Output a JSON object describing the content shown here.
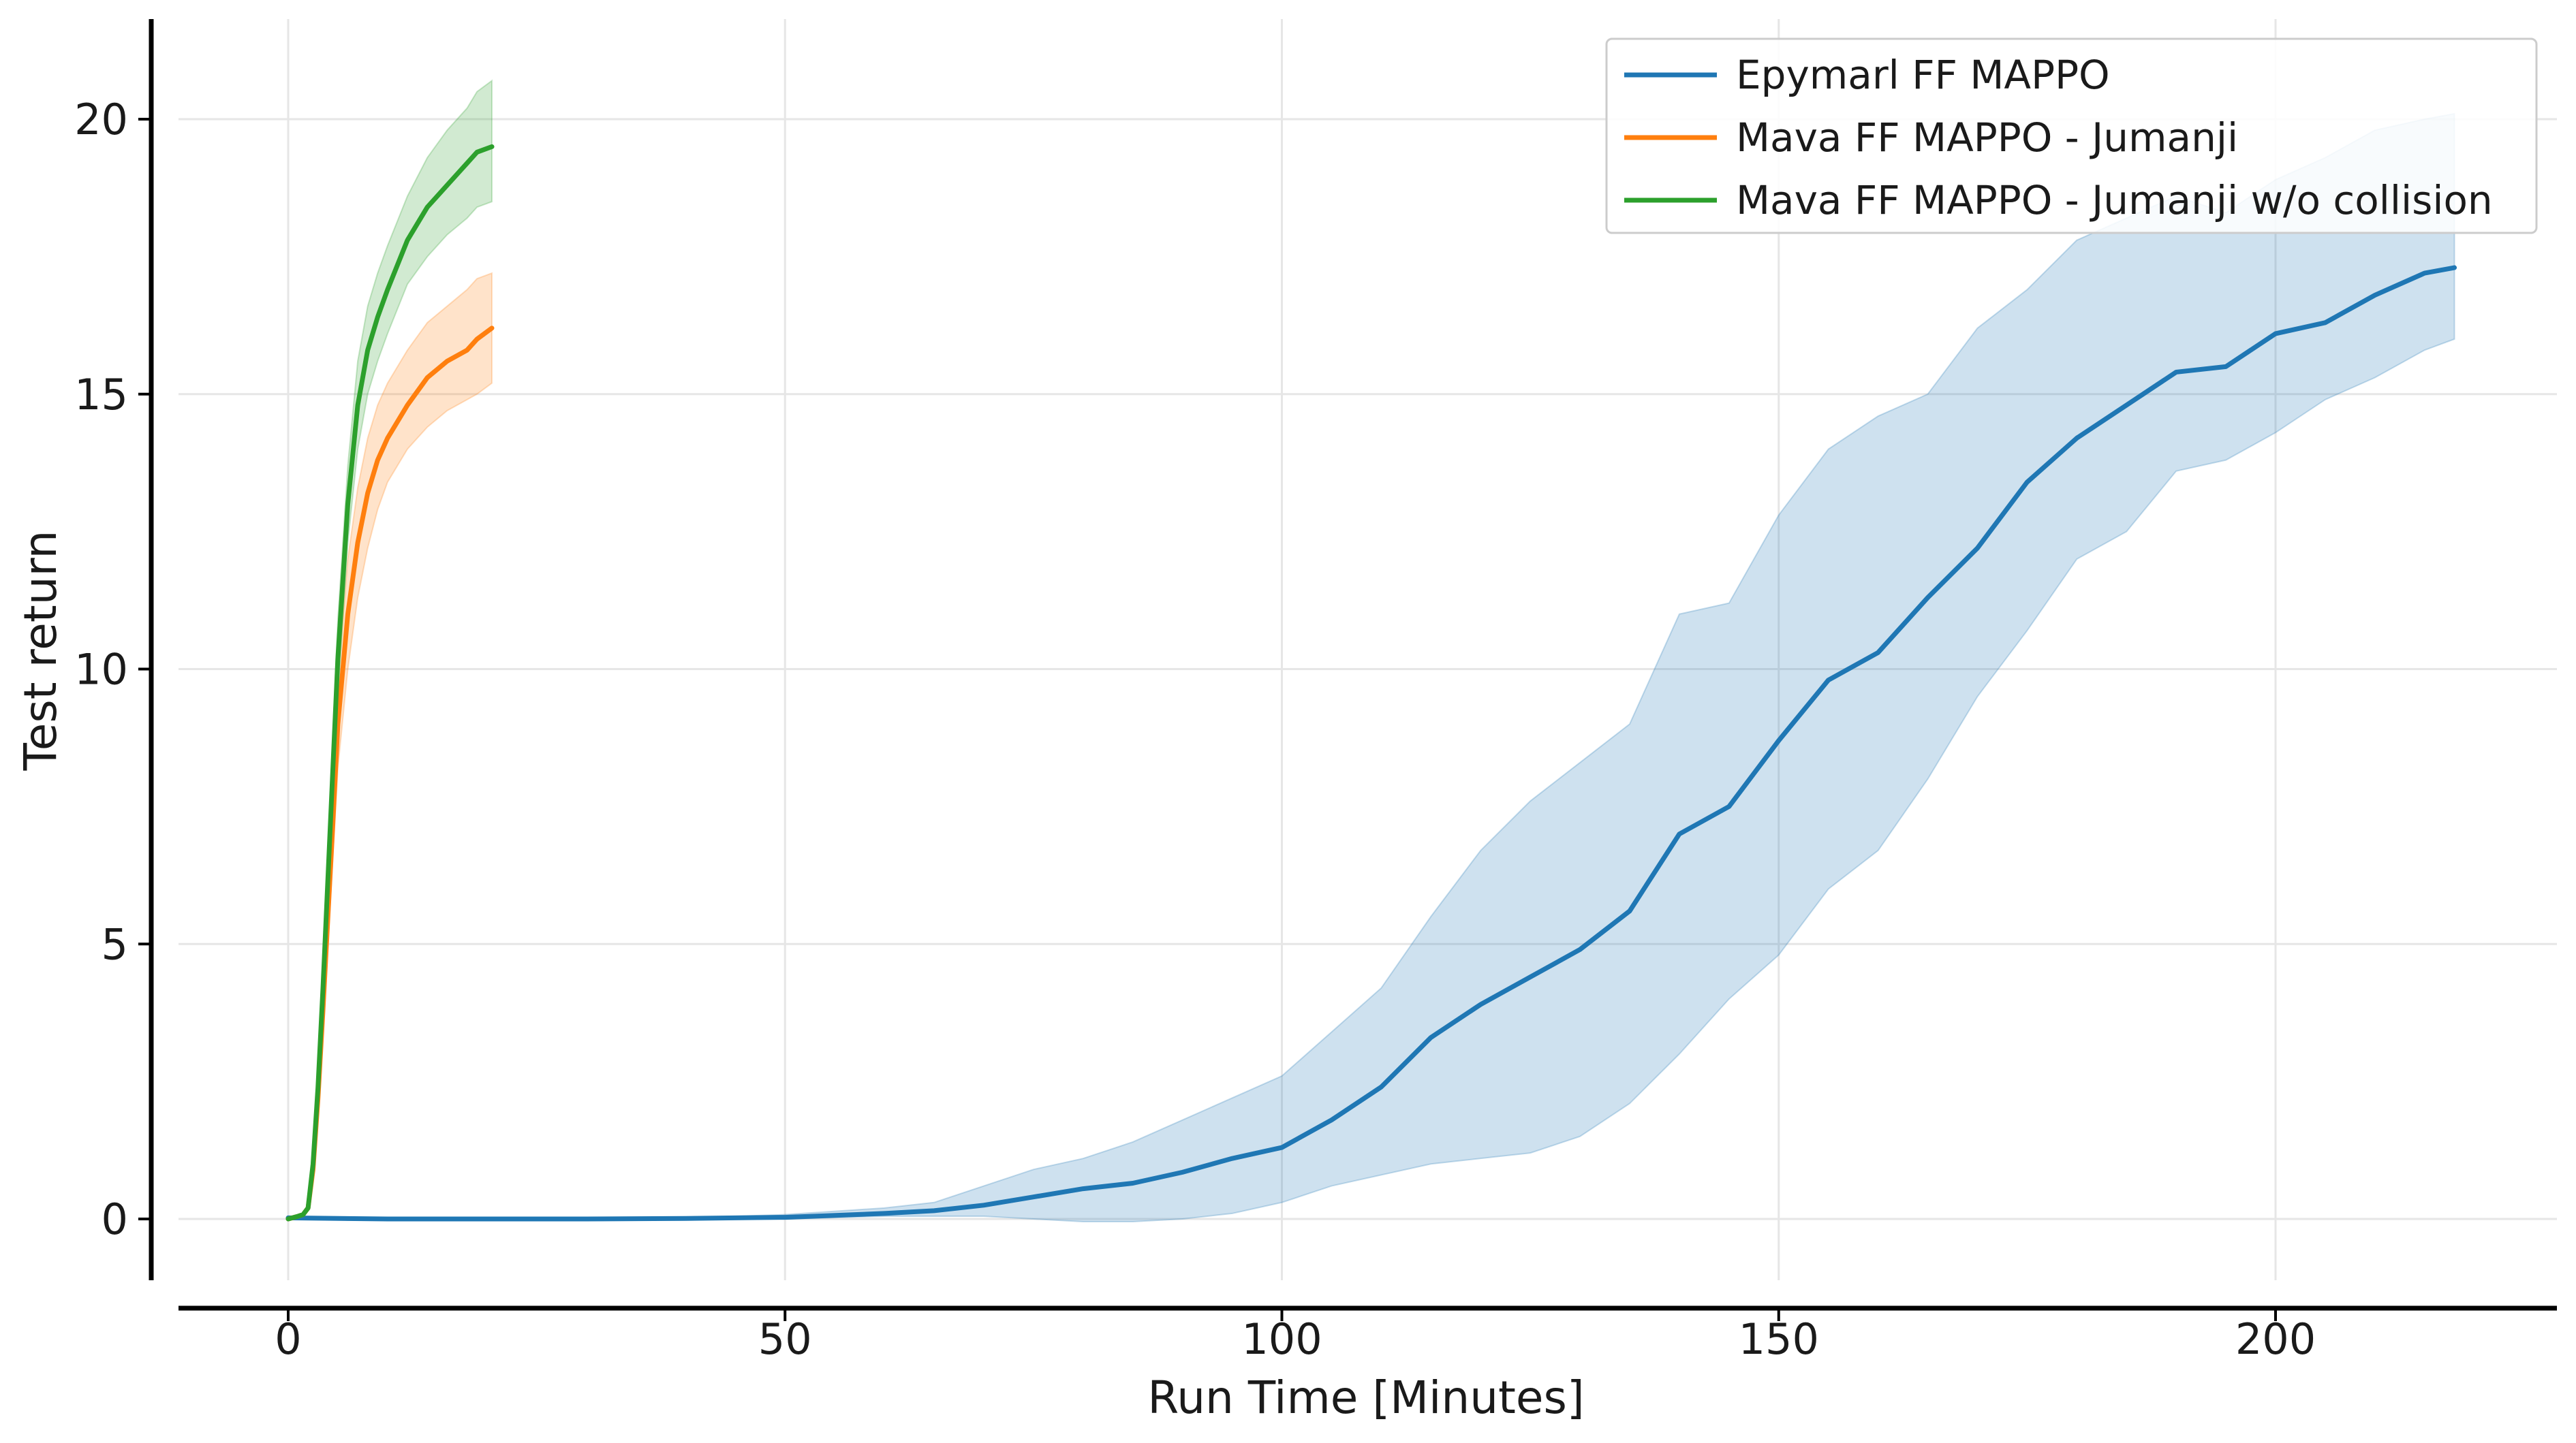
{
  "chart_data": {
    "type": "line",
    "title": "",
    "xlabel": "Run Time [Minutes]",
    "ylabel": "Test return",
    "xlim": [
      -11,
      228
    ],
    "ylim": [
      -1.1,
      21.8
    ],
    "xticks": [
      0,
      50,
      100,
      150,
      200
    ],
    "yticks": [
      0,
      5,
      10,
      15,
      20
    ],
    "grid": true,
    "legend_position": "top-right",
    "series": [
      {
        "name": "Epymarl FF MAPPO",
        "color": "#1f77b4",
        "x": [
          0,
          10,
          20,
          30,
          40,
          50,
          60,
          65,
          70,
          75,
          80,
          85,
          90,
          95,
          100,
          105,
          110,
          115,
          120,
          125,
          130,
          135,
          140,
          145,
          150,
          155,
          160,
          165,
          170,
          175,
          180,
          185,
          190,
          195,
          200,
          205,
          210,
          215,
          218
        ],
        "y": [
          0.02,
          0.0,
          0.0,
          0.0,
          0.01,
          0.03,
          0.1,
          0.15,
          0.25,
          0.4,
          0.55,
          0.65,
          0.85,
          1.1,
          1.3,
          1.8,
          2.4,
          3.3,
          3.9,
          4.4,
          4.9,
          5.6,
          7.0,
          7.5,
          8.7,
          9.8,
          10.3,
          11.3,
          12.2,
          13.4,
          14.2,
          14.8,
          15.4,
          15.5,
          16.1,
          16.3,
          16.8,
          17.2,
          17.3
        ],
        "y_low": [
          0.02,
          0.0,
          0.0,
          0.0,
          0.0,
          0.0,
          0.05,
          0.05,
          0.05,
          0.0,
          -0.05,
          -0.05,
          0.0,
          0.1,
          0.3,
          0.6,
          0.8,
          1.0,
          1.1,
          1.2,
          1.5,
          2.1,
          3.0,
          4.0,
          4.8,
          6.0,
          6.7,
          8.0,
          9.5,
          10.7,
          12.0,
          12.5,
          13.6,
          13.8,
          14.3,
          14.9,
          15.3,
          15.8,
          16.0
        ],
        "y_high": [
          0.02,
          0.0,
          0.0,
          0.0,
          0.02,
          0.08,
          0.2,
          0.3,
          0.6,
          0.9,
          1.1,
          1.4,
          1.8,
          2.2,
          2.6,
          3.4,
          4.2,
          5.5,
          6.7,
          7.6,
          8.3,
          9.0,
          11.0,
          11.2,
          12.8,
          14.0,
          14.6,
          15.0,
          16.2,
          16.9,
          17.8,
          18.2,
          18.6,
          18.3,
          18.9,
          19.3,
          19.8,
          20.0,
          20.1
        ]
      },
      {
        "name": "Mava FF MAPPO - Jumanji",
        "color": "#ff7f0e",
        "x": [
          0,
          1,
          1.5,
          2,
          2.5,
          3,
          3.5,
          4,
          4.5,
          5,
          6,
          7,
          8,
          9,
          10,
          12,
          14,
          16,
          18,
          19,
          20.5
        ],
        "y": [
          0.0,
          0.05,
          0.08,
          0.2,
          0.9,
          2.2,
          3.8,
          5.5,
          7.2,
          9.0,
          11.0,
          12.3,
          13.2,
          13.8,
          14.2,
          14.8,
          15.3,
          15.6,
          15.8,
          16.0,
          16.2
        ],
        "y_low": [
          0.0,
          0.04,
          0.06,
          0.15,
          0.7,
          1.9,
          3.4,
          5.0,
          6.6,
          8.2,
          10.0,
          11.3,
          12.2,
          12.9,
          13.4,
          14.0,
          14.4,
          14.7,
          14.9,
          15.0,
          15.2
        ],
        "y_high": [
          0.0,
          0.06,
          0.1,
          0.25,
          1.1,
          2.5,
          4.2,
          6.0,
          7.8,
          9.8,
          12.0,
          13.3,
          14.2,
          14.8,
          15.2,
          15.8,
          16.3,
          16.6,
          16.9,
          17.1,
          17.2
        ]
      },
      {
        "name": "Mava FF MAPPO - Jumanji w/o collision",
        "color": "#2ca02c",
        "x": [
          0,
          1,
          1.5,
          2,
          2.5,
          3,
          3.5,
          4,
          4.5,
          5,
          6,
          7,
          8,
          9,
          10,
          12,
          14,
          16,
          18,
          19,
          20.5
        ],
        "y": [
          0.0,
          0.05,
          0.08,
          0.2,
          1.0,
          2.4,
          4.2,
          6.2,
          8.2,
          10.2,
          13.0,
          14.8,
          15.8,
          16.4,
          16.9,
          17.8,
          18.4,
          18.8,
          19.2,
          19.4,
          19.5
        ],
        "y_low": [
          0.0,
          0.04,
          0.06,
          0.15,
          0.8,
          2.1,
          3.8,
          5.7,
          7.6,
          9.5,
          12.3,
          14.0,
          15.0,
          15.6,
          16.1,
          17.0,
          17.5,
          17.9,
          18.2,
          18.4,
          18.5
        ],
        "y_high": [
          0.0,
          0.06,
          0.1,
          0.25,
          1.2,
          2.7,
          4.6,
          6.7,
          8.8,
          10.9,
          13.7,
          15.6,
          16.6,
          17.2,
          17.7,
          18.6,
          19.3,
          19.8,
          20.2,
          20.5,
          20.7
        ]
      }
    ]
  }
}
